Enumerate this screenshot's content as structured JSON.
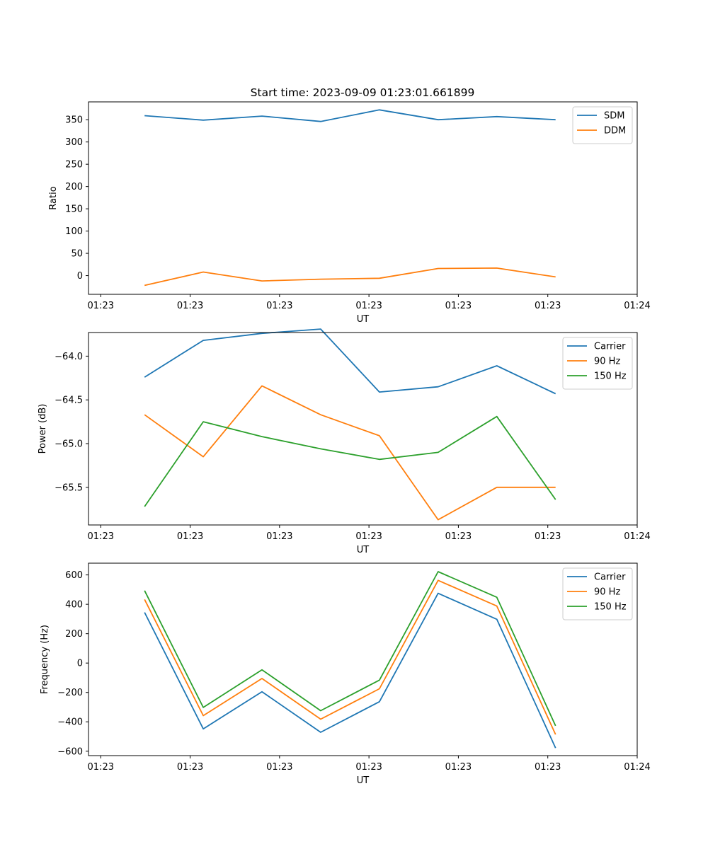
{
  "figure_title": "Start time: 2023-09-09 01:23:01.661899",
  "colors": {
    "blue": "#1f77b4",
    "orange": "#ff7f0e",
    "green": "#2ca02c"
  },
  "chart_data": [
    {
      "type": "line",
      "title": "Start time: 2023-09-09 01:23:01.661899",
      "xlabel": "UT",
      "ylabel": "Ratio",
      "xlim": [
        -0.205,
        9.0
      ],
      "ylim": [
        -42,
        390
      ],
      "xticks": [
        0,
        1.5,
        3,
        4.5,
        6,
        7.5,
        9
      ],
      "xtick_labels": [
        "01:23",
        "01:23",
        "01:23",
        "01:23",
        "01:23",
        "01:23",
        "01:24"
      ],
      "yticks": [
        0,
        50,
        100,
        150,
        200,
        250,
        300,
        350
      ],
      "ytick_labels": [
        "0",
        "50",
        "100",
        "150",
        "200",
        "250",
        "300",
        "350"
      ],
      "x": [
        0.736,
        1.72,
        2.705,
        3.69,
        4.675,
        5.66,
        6.645,
        7.63
      ],
      "legend": "top-right",
      "series": [
        {
          "name": "SDM",
          "color": "#1f77b4",
          "values": [
            359,
            349,
            358,
            346,
            372,
            350,
            357,
            350
          ]
        },
        {
          "name": "DDM",
          "color": "#ff7f0e",
          "values": [
            -22,
            8,
            -12,
            -8,
            -6,
            16,
            17,
            -3
          ]
        }
      ]
    },
    {
      "type": "line",
      "title": "",
      "xlabel": "UT",
      "ylabel": "Power (dB)",
      "xlim": [
        -0.205,
        9.0
      ],
      "ylim": [
        -65.93,
        -63.73
      ],
      "xticks": [
        0,
        1.5,
        3,
        4.5,
        6,
        7.5,
        9
      ],
      "xtick_labels": [
        "01:23",
        "01:23",
        "01:23",
        "01:23",
        "01:23",
        "01:23",
        "01:24"
      ],
      "yticks": [
        -65.5,
        -65.0,
        -64.5,
        -64.0
      ],
      "ytick_labels": [
        "−65.5",
        "−65.0",
        "−64.5",
        "−64.0"
      ],
      "x": [
        0.736,
        1.72,
        2.705,
        3.69,
        4.675,
        5.66,
        6.645,
        7.63
      ],
      "legend": "top-right",
      "series": [
        {
          "name": "Carrier",
          "color": "#1f77b4",
          "values": [
            -64.24,
            -63.82,
            -63.74,
            -63.69,
            -64.41,
            -64.35,
            -64.11,
            -64.43
          ]
        },
        {
          "name": "90 Hz",
          "color": "#ff7f0e",
          "values": [
            -64.67,
            -65.15,
            -64.34,
            -64.67,
            -64.91,
            -65.87,
            -65.5,
            -65.5
          ]
        },
        {
          "name": "150 Hz",
          "color": "#2ca02c",
          "values": [
            -65.72,
            -64.75,
            -64.92,
            -65.06,
            -65.18,
            -65.1,
            -64.69,
            -65.64
          ]
        }
      ]
    },
    {
      "type": "line",
      "title": "",
      "xlabel": "UT",
      "ylabel": "Frequency (Hz)",
      "xlim": [
        -0.205,
        9.0
      ],
      "ylim": [
        -630,
        680
      ],
      "xticks": [
        0,
        1.5,
        3,
        4.5,
        6,
        7.5,
        9
      ],
      "xtick_labels": [
        "01:23",
        "01:23",
        "01:23",
        "01:23",
        "01:23",
        "01:23",
        "01:24"
      ],
      "yticks": [
        -600,
        -400,
        -200,
        0,
        200,
        400,
        600
      ],
      "ytick_labels": [
        "−600",
        "−400",
        "−200",
        "0",
        "200",
        "400",
        "600"
      ],
      "x": [
        0.736,
        1.72,
        2.705,
        3.69,
        4.675,
        5.66,
        6.645,
        7.63
      ],
      "legend": "top-right",
      "series": [
        {
          "name": "Carrier",
          "color": "#1f77b4",
          "values": [
            345,
            -448,
            -195,
            -471,
            -263,
            475,
            298,
            -578
          ]
        },
        {
          "name": "90 Hz",
          "color": "#ff7f0e",
          "values": [
            433,
            -358,
            -105,
            -382,
            -175,
            563,
            388,
            -486
          ]
        },
        {
          "name": "150 Hz",
          "color": "#2ca02c",
          "values": [
            493,
            -302,
            -46,
            -324,
            -116,
            622,
            448,
            -427
          ]
        }
      ]
    }
  ]
}
